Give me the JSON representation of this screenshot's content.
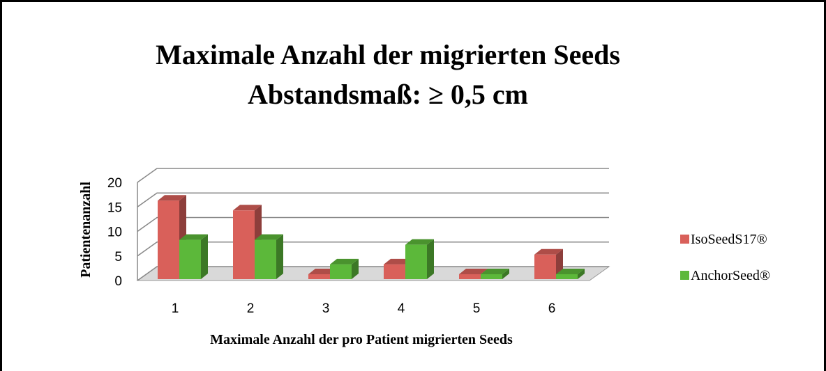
{
  "chart_data": {
    "type": "bar3d",
    "title": "Maximale Anzahl der migrierten Seeds",
    "subtitle": "Abstandsmaß: ≥ 0,5 cm",
    "x_label": "Maximale Anzahl der pro Patient migrierten Seeds",
    "y_label": "Patientenanzahl",
    "categories": [
      "1",
      "2",
      "3",
      "4",
      "5",
      "6"
    ],
    "series": [
      {
        "name": "IsoSeedS17®",
        "color": "#d9605a",
        "values": [
          16,
          14,
          1,
          3,
          1,
          5
        ]
      },
      {
        "name": "AnchorSeed®",
        "color": "#5cb83a",
        "values": [
          8,
          8,
          3,
          7,
          1,
          1
        ]
      }
    ],
    "ylim": [
      0,
      20
    ],
    "yticks": [
      0,
      5,
      10,
      15,
      20
    ],
    "grid": true,
    "legend": "right"
  }
}
